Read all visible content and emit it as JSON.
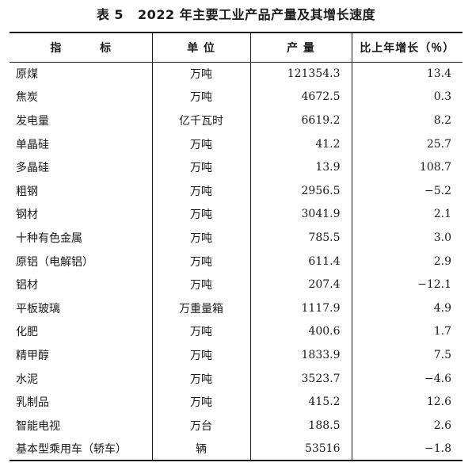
{
  "title": {
    "table_no": "表 5",
    "text": "2022 年主要工业产品产量及其增长速度"
  },
  "headers": {
    "indicator": "指 标",
    "unit": "单 位",
    "output": "产 量",
    "growth": "比上年增长（％）"
  },
  "rows": [
    {
      "name": "原煤",
      "unit": "万吨",
      "output": "121354.3",
      "growth": "13.4"
    },
    {
      "name": "焦炭",
      "unit": "万吨",
      "output": "4672.5",
      "growth": "0.3"
    },
    {
      "name": "发电量",
      "unit": "亿千瓦时",
      "output": "6619.2",
      "growth": "8.2"
    },
    {
      "name": "单晶硅",
      "unit": "万吨",
      "output": "41.2",
      "growth": "25.7"
    },
    {
      "name": "多晶硅",
      "unit": "万吨",
      "output": "13.9",
      "growth": "108.7"
    },
    {
      "name": "粗钢",
      "unit": "万吨",
      "output": "2956.5",
      "growth": "−5.2"
    },
    {
      "name": "钢材",
      "unit": "万吨",
      "output": "3041.9",
      "growth": "2.1"
    },
    {
      "name": "十种有色金属",
      "unit": "万吨",
      "output": "785.5",
      "growth": "3.0"
    },
    {
      "name": "原铝（电解铝）",
      "unit": "万吨",
      "output": "611.4",
      "growth": "2.9"
    },
    {
      "name": "铝材",
      "unit": "万吨",
      "output": "207.4",
      "growth": "−12.1"
    },
    {
      "name": "平板玻璃",
      "unit": "万重量箱",
      "output": "1117.9",
      "growth": "4.9"
    },
    {
      "name": "化肥",
      "unit": "万吨",
      "output": "400.6",
      "growth": "1.7"
    },
    {
      "name": "精甲醇",
      "unit": "万吨",
      "output": "1833.9",
      "growth": "7.5"
    },
    {
      "name": "水泥",
      "unit": "万吨",
      "output": "3523.7",
      "growth": "−4.6"
    },
    {
      "name": "乳制品",
      "unit": "万吨",
      "output": "415.2",
      "growth": "12.6"
    },
    {
      "name": "智能电视",
      "unit": "万台",
      "output": "188.5",
      "growth": "2.6"
    },
    {
      "name": "基本型乘用车（轿车）",
      "unit": "辆",
      "output": "53516",
      "growth": "−1.8"
    }
  ]
}
